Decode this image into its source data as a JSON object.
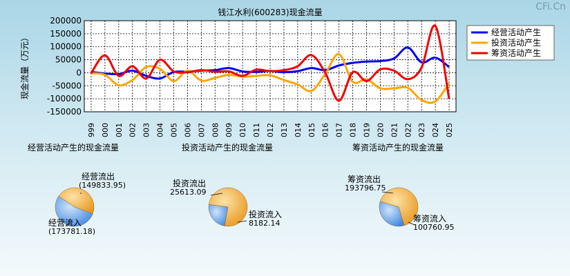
{
  "watermark": "CFi.Cn",
  "chart_data": [
    {
      "type": "line",
      "title": "钱江水利(600283)现金流量",
      "ylabel": "现金流量（万元）",
      "ylim": [
        -150000,
        200000
      ],
      "yticks": [
        200000,
        150000,
        100000,
        50000,
        0,
        -50000,
        -100000,
        -150000
      ],
      "ytick_labels": [
        "200000",
        "150000",
        "100000",
        "50000",
        "0",
        "-50000",
        "-100000",
        "-150000"
      ],
      "categories": [
        "1999",
        "2000",
        "2001",
        "2002",
        "2003",
        "2004",
        "2005",
        "2006",
        "2007",
        "2008",
        "2009",
        "2010",
        "2011",
        "2012",
        "2013",
        "2014",
        "2015",
        "2016",
        "2017",
        "2018",
        "2019",
        "2020",
        "2021",
        "2022",
        "2023",
        "2024",
        "2025"
      ],
      "grid": true,
      "legend_position": "top-right",
      "series": [
        {
          "name": "经营活动产生",
          "color": "#0000ee",
          "values": [
            3000,
            -3000,
            -5000,
            8000,
            -12000,
            -22000,
            3000,
            4000,
            8000,
            10000,
            18000,
            5000,
            3000,
            7000,
            2000,
            6000,
            18000,
            10000,
            28000,
            38000,
            43000,
            45000,
            55000,
            97000,
            40000,
            58000,
            22000
          ]
        },
        {
          "name": "投资活动产生",
          "color": "#ffa500",
          "values": [
            -2000,
            -8000,
            -48000,
            -28000,
            22000,
            15000,
            -32000,
            8000,
            -30000,
            -20000,
            -8000,
            -15000,
            -12000,
            -10000,
            -28000,
            -45000,
            -70000,
            -5000,
            72000,
            -35000,
            -25000,
            -60000,
            -60000,
            -58000,
            -105000,
            -110000,
            -40000
          ]
        },
        {
          "name": "筹资活动产生",
          "color": "#ee0000",
          "values": [
            -2000,
            67000,
            -12000,
            25000,
            -22000,
            50000,
            5000,
            2000,
            10000,
            4000,
            5000,
            -12000,
            12000,
            6000,
            10000,
            25000,
            68000,
            0,
            -108000,
            2000,
            -32000,
            13000,
            8000,
            -25000,
            20000,
            180000,
            -100000
          ]
        }
      ]
    },
    {
      "type": "pie",
      "title": "经营活动产生的现金流量",
      "slices": [
        {
          "label": "经营流出",
          "value_text": "(149833.95)",
          "value": 149833.95,
          "color": "#f5a623"
        },
        {
          "label": "经营流入",
          "value_text": "(173781.18)",
          "value": 173781.18,
          "color": "#4a90e2"
        }
      ]
    },
    {
      "type": "pie",
      "title": "投资活动产生的现金流量",
      "slices": [
        {
          "label": "投资流出",
          "value_text": "25613.09",
          "value": 25613.09,
          "color": "#f5a623"
        },
        {
          "label": "投资流入",
          "value_text": "8182.14",
          "value": 8182.14,
          "color": "#4a90e2"
        }
      ]
    },
    {
      "type": "pie",
      "title": "筹资活动产生的现金流量",
      "slices": [
        {
          "label": "筹资流出",
          "value_text": "193796.75",
          "value": 193796.75,
          "color": "#f5a623"
        },
        {
          "label": "筹资流入",
          "value_text": "100760.95",
          "value": 100760.95,
          "color": "#4a90e2"
        }
      ]
    }
  ]
}
